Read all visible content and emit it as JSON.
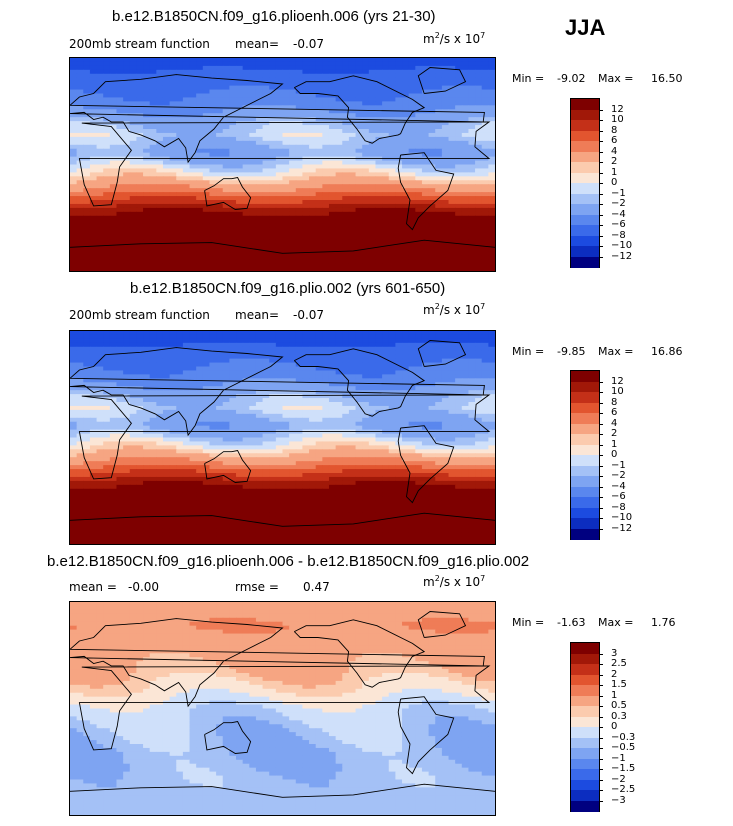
{
  "season": "JJA",
  "colors": {
    "scale": [
      "#000080",
      "#0c2dc0",
      "#1c4be0",
      "#3a6aea",
      "#5a87ee",
      "#7ea4f2",
      "#a4c1f6",
      "#cfe0fa",
      "#fbe6d6",
      "#fbcbae",
      "#f6a582",
      "#ef7c57",
      "#e2552f",
      "#c43018",
      "#a11808",
      "#7e0000"
    ]
  },
  "panels": [
    {
      "title": "b.e12.B1850CN.f09_g16.plioenh.006 (yrs 21-30)",
      "left_label": "200mb stream function",
      "mean_label": "mean=",
      "mean_value": "-0.07",
      "units_base": "m",
      "units_exp": "2",
      "units_mid": "/s x 10",
      "units_exp2": "7",
      "min_label": "Min =",
      "min_value": "-9.02",
      "max_label": "Max =",
      "max_value": "16.50",
      "colorbar_labels": [
        "12",
        "10",
        "8",
        "6",
        "4",
        "2",
        "1",
        "0",
        "−1",
        "−2",
        "−4",
        "−6",
        "−8",
        "−10",
        "−12"
      ],
      "chart_data": {
        "type": "heatmap",
        "variable": "200mb stream function",
        "units": "m^2/s x 10^7",
        "projection": "cylindrical equidistant, 180° centered",
        "xlim": [
          0,
          360
        ],
        "ylim": [
          -90,
          90
        ],
        "min": -9.02,
        "max": 16.5,
        "contour_levels": [
          -12,
          -10,
          -8,
          -6,
          -4,
          -2,
          -1,
          0,
          1,
          2,
          4,
          6,
          8,
          10,
          12
        ],
        "zonal_profile": [
          {
            "lat": 90,
            "value": -9
          },
          {
            "lat": 70,
            "value": -7
          },
          {
            "lat": 50,
            "value": -5
          },
          {
            "lat": 35,
            "value": -2
          },
          {
            "lat": 25,
            "value": -1
          },
          {
            "lat": 10,
            "value": -3
          },
          {
            "lat": 0,
            "value": -1
          },
          {
            "lat": -10,
            "value": 1
          },
          {
            "lat": -20,
            "value": 4
          },
          {
            "lat": -30,
            "value": 8
          },
          {
            "lat": -40,
            "value": 12
          },
          {
            "lat": -55,
            "value": 15
          },
          {
            "lat": -90,
            "value": 16
          }
        ]
      }
    },
    {
      "title": "b.e12.B1850CN.f09_g16.plio.002 (yrs 601-650)",
      "left_label": "200mb stream function",
      "mean_label": "mean=",
      "mean_value": "-0.07",
      "units_base": "m",
      "units_exp": "2",
      "units_mid": "/s x 10",
      "units_exp2": "7",
      "min_label": "Min =",
      "min_value": "-9.85",
      "max_label": "Max =",
      "max_value": "16.86",
      "colorbar_labels": [
        "12",
        "10",
        "8",
        "6",
        "4",
        "2",
        "1",
        "0",
        "−1",
        "−2",
        "−4",
        "−6",
        "−8",
        "−10",
        "−12"
      ],
      "chart_data": {
        "type": "heatmap",
        "variable": "200mb stream function",
        "units": "m^2/s x 10^7",
        "projection": "cylindrical equidistant, 180° centered",
        "xlim": [
          0,
          360
        ],
        "ylim": [
          -90,
          90
        ],
        "min": -9.85,
        "max": 16.86,
        "contour_levels": [
          -12,
          -10,
          -8,
          -6,
          -4,
          -2,
          -1,
          0,
          1,
          2,
          4,
          6,
          8,
          10,
          12
        ],
        "zonal_profile": [
          {
            "lat": 90,
            "value": -9.5
          },
          {
            "lat": 70,
            "value": -7
          },
          {
            "lat": 50,
            "value": -5
          },
          {
            "lat": 35,
            "value": -2
          },
          {
            "lat": 25,
            "value": -1
          },
          {
            "lat": 10,
            "value": -3
          },
          {
            "lat": 0,
            "value": -1
          },
          {
            "lat": -10,
            "value": 1
          },
          {
            "lat": -20,
            "value": 4
          },
          {
            "lat": -30,
            "value": 8
          },
          {
            "lat": -40,
            "value": 12
          },
          {
            "lat": -55,
            "value": 15
          },
          {
            "lat": -90,
            "value": 16.5
          }
        ]
      }
    },
    {
      "title": "b.e12.B1850CN.f09_g16.plioenh.006 - b.e12.B1850CN.f09_g16.plio.002",
      "left_label": "mean =",
      "mean_label": "",
      "mean_value": "-0.00",
      "rmse_label": "rmse =",
      "rmse_value": "0.47",
      "units_base": "m",
      "units_exp": "2",
      "units_mid": "/s x 10",
      "units_exp2": "7",
      "min_label": "Min =",
      "min_value": "-1.63",
      "max_label": "Max =",
      "max_value": "1.76",
      "colorbar_labels": [
        "3",
        "2.5",
        "2",
        "1.5",
        "1",
        "0.5",
        "0.3",
        "0",
        "−0.3",
        "−0.5",
        "−1",
        "−1.5",
        "−2",
        "−2.5",
        "−3"
      ],
      "chart_data": {
        "type": "heatmap",
        "variable": "200mb stream function difference",
        "units": "m^2/s x 10^7",
        "projection": "cylindrical equidistant, 180° centered",
        "xlim": [
          0,
          360
        ],
        "ylim": [
          -90,
          90
        ],
        "min": -1.63,
        "max": 1.76,
        "contour_levels": [
          -3,
          -2.5,
          -2,
          -1.5,
          -1,
          -0.5,
          -0.3,
          0,
          0.3,
          0.5,
          1,
          1.5,
          2,
          2.5,
          3
        ],
        "zonal_profile": [
          {
            "lat": 90,
            "value": 0.8
          },
          {
            "lat": 70,
            "value": 1.0
          },
          {
            "lat": 50,
            "value": 0.7
          },
          {
            "lat": 30,
            "value": 0.5
          },
          {
            "lat": 15,
            "value": 0.2
          },
          {
            "lat": 0,
            "value": -0.2
          },
          {
            "lat": -20,
            "value": -0.4
          },
          {
            "lat": -40,
            "value": -0.5
          },
          {
            "lat": -60,
            "value": -0.4
          },
          {
            "lat": -90,
            "value": -0.4
          }
        ]
      }
    }
  ]
}
